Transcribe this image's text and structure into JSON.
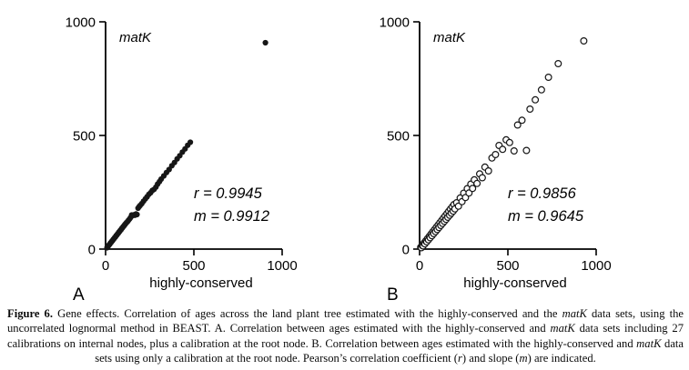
{
  "figure": {
    "label": "Figure 6.",
    "panels": [
      "A",
      "B"
    ]
  },
  "chart_data": [
    {
      "type": "scatter",
      "panel_label": "A",
      "title": "matK",
      "xlabel": "highly-conserved",
      "ylabel": "",
      "xlim": [
        0,
        1000
      ],
      "ylim": [
        0,
        1000
      ],
      "xticks": [
        0,
        500,
        1000
      ],
      "yticks": [
        0,
        500,
        1000
      ],
      "grid": false,
      "legend": "none",
      "marker": "filled-circle",
      "annotations": [
        "r = 0.9945",
        "m = 0.9912"
      ],
      "stats": {
        "r": 0.9945,
        "m": 0.9912
      },
      "points": [
        [
          8,
          6
        ],
        [
          12,
          11
        ],
        [
          16,
          14
        ],
        [
          20,
          19
        ],
        [
          24,
          22
        ],
        [
          28,
          27
        ],
        [
          32,
          30
        ],
        [
          36,
          35
        ],
        [
          40,
          38
        ],
        [
          44,
          43
        ],
        [
          48,
          46
        ],
        [
          52,
          51
        ],
        [
          56,
          54
        ],
        [
          60,
          59
        ],
        [
          64,
          62
        ],
        [
          68,
          67
        ],
        [
          72,
          70
        ],
        [
          76,
          75
        ],
        [
          80,
          78
        ],
        [
          84,
          83
        ],
        [
          88,
          86
        ],
        [
          92,
          91
        ],
        [
          96,
          94
        ],
        [
          100,
          99
        ],
        [
          104,
          102
        ],
        [
          108,
          107
        ],
        [
          112,
          110
        ],
        [
          118,
          116
        ],
        [
          124,
          121
        ],
        [
          130,
          127
        ],
        [
          136,
          133
        ],
        [
          142,
          139
        ],
        [
          148,
          150
        ],
        [
          154,
          148
        ],
        [
          160,
          151
        ],
        [
          166,
          149
        ],
        [
          172,
          155
        ],
        [
          178,
          152
        ],
        [
          184,
          180
        ],
        [
          190,
          187
        ],
        [
          196,
          192
        ],
        [
          205,
          200
        ],
        [
          215,
          211
        ],
        [
          225,
          221
        ],
        [
          235,
          230
        ],
        [
          245,
          241
        ],
        [
          255,
          248
        ],
        [
          265,
          258
        ],
        [
          275,
          263
        ],
        [
          285,
          273
        ],
        [
          295,
          286
        ],
        [
          305,
          297
        ],
        [
          315,
          308
        ],
        [
          330,
          322
        ],
        [
          345,
          337
        ],
        [
          360,
          350
        ],
        [
          375,
          367
        ],
        [
          390,
          381
        ],
        [
          405,
          397
        ],
        [
          420,
          411
        ],
        [
          435,
          427
        ],
        [
          450,
          441
        ],
        [
          465,
          457
        ],
        [
          480,
          470
        ],
        [
          905,
          908
        ]
      ]
    },
    {
      "type": "scatter",
      "panel_label": "B",
      "title": "matK",
      "xlabel": "highly-conserved",
      "ylabel": "",
      "xlim": [
        0,
        1000
      ],
      "ylim": [
        0,
        1000
      ],
      "xticks": [
        0,
        500,
        1000
      ],
      "yticks": [
        0,
        500,
        1000
      ],
      "grid": false,
      "legend": "none",
      "marker": "open-circle",
      "annotations": [
        "r = 0.9856",
        "m = 0.9645"
      ],
      "stats": {
        "r": 0.9856,
        "m": 0.9645
      },
      "points": [
        [
          6,
          8
        ],
        [
          10,
          6
        ],
        [
          15,
          16
        ],
        [
          20,
          14
        ],
        [
          25,
          26
        ],
        [
          30,
          23
        ],
        [
          35,
          36
        ],
        [
          40,
          32
        ],
        [
          45,
          46
        ],
        [
          50,
          41
        ],
        [
          55,
          56
        ],
        [
          60,
          50
        ],
        [
          65,
          66
        ],
        [
          70,
          59
        ],
        [
          75,
          76
        ],
        [
          80,
          68
        ],
        [
          85,
          86
        ],
        [
          90,
          77
        ],
        [
          95,
          96
        ],
        [
          100,
          86
        ],
        [
          105,
          106
        ],
        [
          110,
          95
        ],
        [
          115,
          116
        ],
        [
          120,
          104
        ],
        [
          125,
          126
        ],
        [
          130,
          113
        ],
        [
          135,
          136
        ],
        [
          140,
          122
        ],
        [
          145,
          146
        ],
        [
          150,
          131
        ],
        [
          155,
          156
        ],
        [
          160,
          140
        ],
        [
          165,
          166
        ],
        [
          170,
          149
        ],
        [
          175,
          176
        ],
        [
          180,
          158
        ],
        [
          185,
          186
        ],
        [
          190,
          167
        ],
        [
          195,
          196
        ],
        [
          200,
          177
        ],
        [
          210,
          204
        ],
        [
          220,
          189
        ],
        [
          230,
          225
        ],
        [
          240,
          209
        ],
        [
          250,
          246
        ],
        [
          260,
          227
        ],
        [
          270,
          266
        ],
        [
          280,
          247
        ],
        [
          290,
          286
        ],
        [
          300,
          267
        ],
        [
          310,
          305
        ],
        [
          325,
          289
        ],
        [
          340,
          331
        ],
        [
          355,
          314
        ],
        [
          370,
          361
        ],
        [
          390,
          344
        ],
        [
          410,
          401
        ],
        [
          430,
          416
        ],
        [
          450,
          456
        ],
        [
          470,
          439
        ],
        [
          490,
          481
        ],
        [
          510,
          469
        ],
        [
          535,
          432
        ],
        [
          555,
          546
        ],
        [
          580,
          567
        ],
        [
          605,
          434
        ],
        [
          625,
          616
        ],
        [
          655,
          657
        ],
        [
          690,
          701
        ],
        [
          730,
          756
        ],
        [
          785,
          816
        ],
        [
          930,
          916
        ]
      ]
    }
  ],
  "caption": {
    "segments": [
      {
        "text": "Figure 6.",
        "bold": true
      },
      {
        "text": " Gene effects. Correlation of ages across the land plant tree estimated with the highly-conserved and the "
      },
      {
        "text": "matK",
        "italic": true
      },
      {
        "text": " data sets, using the uncorrelated lognormal method in BEAST. A. Correlation between ages estimated with the highly-conserved and "
      },
      {
        "text": "matK",
        "italic": true
      },
      {
        "text": " data sets including 27 calibrations on internal nodes, plus a calibration at the root node. B. Correlation between ages estimated with the highly-conserved and "
      },
      {
        "text": "matK",
        "italic": true
      },
      {
        "text": " data sets using only a calibration at the root node. Pearson’s correlation coefficient ("
      },
      {
        "text": "r",
        "italic": true
      },
      {
        "text": ") and slope ("
      },
      {
        "text": "m",
        "italic": true
      },
      {
        "text": ") are indicated."
      }
    ]
  }
}
